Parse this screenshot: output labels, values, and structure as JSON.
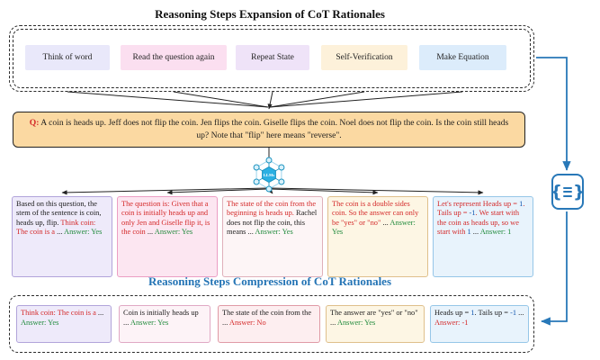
{
  "titles": {
    "expansion": "Reasoning Steps Expansion of CoT Rationales",
    "compression": "Reasoning Steps Compression of CoT Rationales"
  },
  "strategies": [
    {
      "label": "Think of word",
      "bg": "#e9e8fa"
    },
    {
      "label": "Read the question again",
      "bg": "#fbdff0"
    },
    {
      "label": "Repeat State",
      "bg": "#efe3f8"
    },
    {
      "label": "Self-Verification",
      "bg": "#fdf1da"
    },
    {
      "label": "Make Equation",
      "bg": "#dcecfb"
    }
  ],
  "question": {
    "prefix": "Q:",
    "text": " A coin is heads up. Jeff does not flip the coin. Jen flips the coin. Giselle flips the coin. Noel does not flip the coin. Is the coin still heads up? Note that \"flip\" here means \"reverse\"."
  },
  "llm": {
    "label": "LLMs"
  },
  "icons": {
    "compress_brace_left": "{",
    "compress_brace_right": "}"
  },
  "rationales": [
    {
      "bg": "#eeeafa",
      "border": "#b1a4da",
      "segments": [
        {
          "text": "Based on this question, the stem of the sentence is coin, heads up, flip. ",
          "color": "black"
        },
        {
          "text": "Think coin: The coin is a",
          "color": "red"
        },
        {
          "text": " ... ",
          "color": "black"
        },
        {
          "text": "Answer: Yes",
          "color": "green"
        }
      ]
    },
    {
      "bg": "#fce6f1",
      "border": "#ec9ec4",
      "segments": [
        {
          "text": "The question is: Given that a coin is initially heads up and only Jen and Giselle flip it, is the coin",
          "color": "red"
        },
        {
          "text": " ... ",
          "color": "black"
        },
        {
          "text": "Answer: Yes",
          "color": "green"
        }
      ]
    },
    {
      "bg": "#fdf5f6",
      "border": "#dfb0ba",
      "segments": [
        {
          "text": "The state of the coin from the beginning is heads up.",
          "color": "red"
        },
        {
          "text": " Rachel does not flip the coin, this means",
          "color": "black"
        },
        {
          "text": " ... ",
          "color": "black"
        },
        {
          "text": "Answer: Yes",
          "color": "green"
        }
      ]
    },
    {
      "bg": "#fdf6e4",
      "border": "#dfc08c",
      "segments": [
        {
          "text": "The coin is a double sides coin. So the answer can only be \"yes\" or \"no\"",
          "color": "red"
        },
        {
          "text": " ... ",
          "color": "black"
        },
        {
          "text": "Answer: Yes",
          "color": "green"
        }
      ]
    },
    {
      "bg": "#e8f3fc",
      "border": "#96c6e8",
      "segments": [
        {
          "text": "Let's represent Heads up = ",
          "color": "red"
        },
        {
          "text": "1",
          "color": "blue"
        },
        {
          "text": ". Tails up = ",
          "color": "red"
        },
        {
          "text": "-1",
          "color": "blue"
        },
        {
          "text": ". We start with the coin as heads up, so we start with ",
          "color": "red"
        },
        {
          "text": "1",
          "color": "blue"
        },
        {
          "text": " ... ",
          "color": "black"
        },
        {
          "text": "Answer: 1",
          "color": "green"
        }
      ]
    }
  ],
  "compressed": [
    {
      "bg": "#eeeafa",
      "border": "#b1a4da",
      "segments": [
        {
          "text": "Think coin: The coin is a",
          "color": "red"
        },
        {
          "text": " ... ",
          "color": "black"
        },
        {
          "text": "Answer: Yes",
          "color": "green"
        }
      ]
    },
    {
      "bg": "#fdf3f7",
      "border": "#e0a8c4",
      "segments": [
        {
          "text": "Coin is initially heads up",
          "color": "black"
        },
        {
          "text": " ... ",
          "color": "black"
        },
        {
          "text": "Answer: Yes",
          "color": "green"
        }
      ]
    },
    {
      "bg": "#fdeef0",
      "border": "#e09aa6",
      "segments": [
        {
          "text": "The state of the coin from the",
          "color": "black"
        },
        {
          "text": " ... ",
          "color": "black"
        },
        {
          "text": "Answer: No",
          "color": "red"
        }
      ]
    },
    {
      "bg": "#fdf6e4",
      "border": "#dfc08c",
      "segments": [
        {
          "text": "The answer are \"yes\" or \"no\"",
          "color": "black"
        },
        {
          "text": " ... ",
          "color": "black"
        },
        {
          "text": "Answer: Yes",
          "color": "green"
        }
      ]
    },
    {
      "bg": "#e8f3fc",
      "border": "#96c6e8",
      "segments": [
        {
          "text": "Heads up = ",
          "color": "black"
        },
        {
          "text": "1",
          "color": "blue"
        },
        {
          "text": ". Tails up = ",
          "color": "black"
        },
        {
          "text": "-1",
          "color": "blue"
        },
        {
          "text": " ... ",
          "color": "black"
        },
        {
          "text": "Answer: -1",
          "color": "red"
        }
      ]
    }
  ],
  "colors": {
    "flow_blue": "#2878b8",
    "question_bg": "#fbd9a2",
    "llm_icon_fill": "#2ab0e3"
  }
}
